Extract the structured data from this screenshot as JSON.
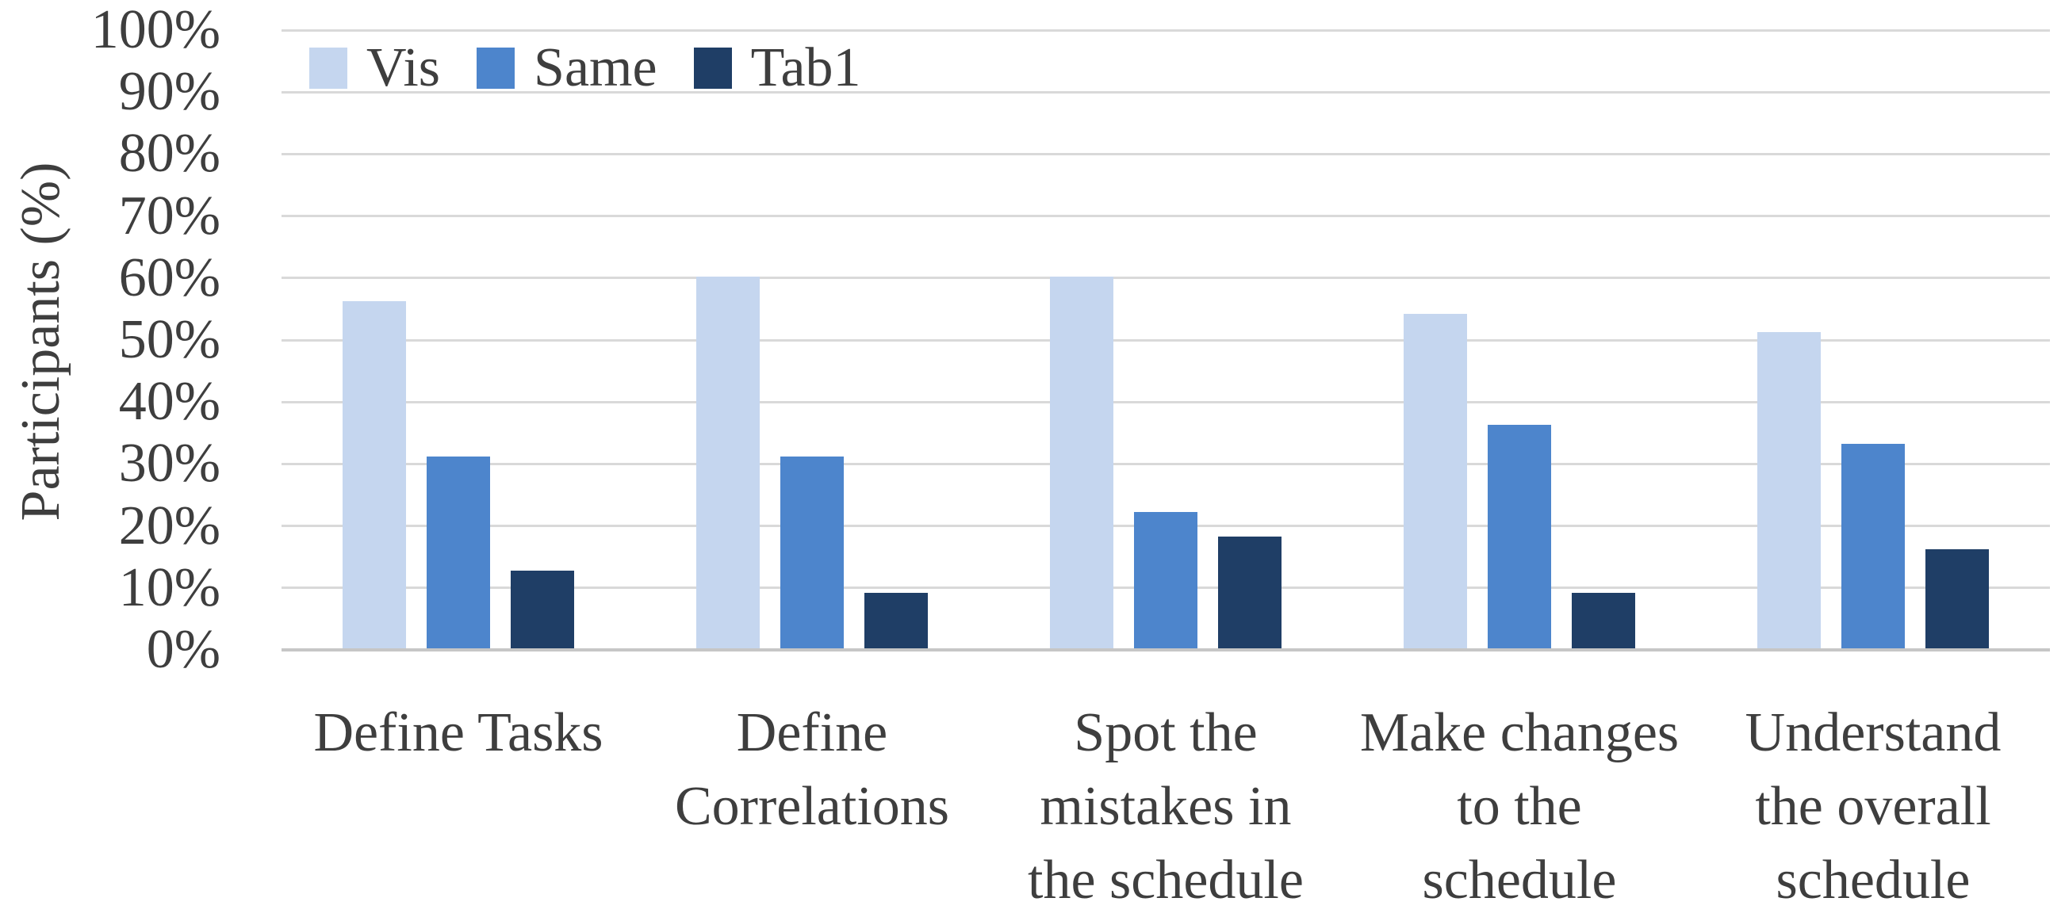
{
  "figure_background": "#FFFFFF",
  "chart_data": {
    "type": "bar",
    "title": "",
    "xlabel": "",
    "ylabel": "Participants (%)",
    "ylim": [
      0,
      100
    ],
    "ytick_step": 10,
    "yticks": [
      "100%",
      "90%",
      "80%",
      "70%",
      "60%",
      "50%",
      "40%",
      "30%",
      "20%",
      "10%",
      "0%"
    ],
    "grid": true,
    "legend_position": "top-left-inside",
    "categories": [
      "Define Tasks",
      "Define Correlations",
      "Spot the mistakes in the schedule",
      "Make changes to the schedule",
      "Understand the overall schedule"
    ],
    "category_label_lines": [
      [
        "Define Tasks"
      ],
      [
        "Define",
        "Correlations"
      ],
      [
        "Spot the",
        "mistakes in",
        "the schedule"
      ],
      [
        "Make changes",
        "to the",
        "schedule"
      ],
      [
        "Understand",
        "the overall",
        "schedule"
      ]
    ],
    "series": [
      {
        "name": "Vis",
        "color": "#C5D6EF",
        "values": [
          56,
          60,
          60,
          54,
          51
        ]
      },
      {
        "name": "Same",
        "color": "#4D85CC",
        "values": [
          31,
          31,
          22,
          36,
          33
        ]
      },
      {
        "name": "Tab1",
        "color": "#1F3E66",
        "values": [
          12.5,
          9,
          18,
          9,
          16
        ]
      }
    ],
    "colors": {
      "gridline": "#D9D9D9",
      "axis_line": "#C6C6C6",
      "text": "#3E3E3E",
      "background": "#FFFFFF"
    }
  }
}
